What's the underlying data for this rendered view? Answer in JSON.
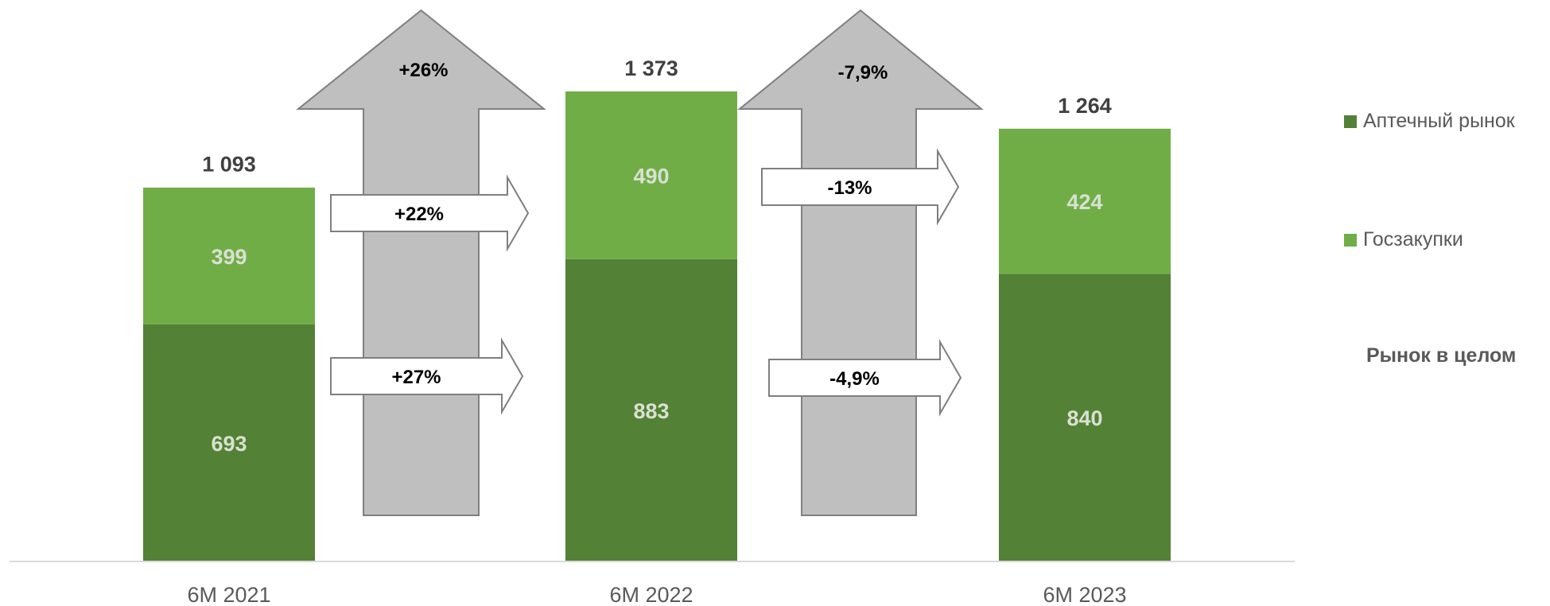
{
  "chart_data": {
    "type": "bar",
    "stacked": true,
    "categories": [
      "6M 2021",
      "6M 2022",
      "6M 2023"
    ],
    "series": [
      {
        "name": "Аптечный рынок",
        "values": [
          693,
          883,
          840
        ],
        "color": "#538135"
      },
      {
        "name": "Госзакупки",
        "values": [
          399,
          490,
          424
        ],
        "color": "#70AD47"
      }
    ],
    "totals": [
      "1 093",
      "1 373",
      "1 264"
    ],
    "total_values": [
      1093,
      1373,
      1264
    ],
    "total_series_name": "Рынок в целом",
    "growth": {
      "total": [
        "+26%",
        "-7,9%"
      ],
      "Госзакупки": [
        "+22%",
        "-13%"
      ],
      "Аптечный рынок": [
        "+27%",
        "-4,9%"
      ]
    },
    "ylim": [
      0,
      1500
    ],
    "grid": false,
    "legend_position": "right",
    "title": "",
    "xlabel": "",
    "ylabel": ""
  },
  "colors": {
    "pharmacy": "#538135",
    "procurement": "#70AD47",
    "big_arrow_fill": "#BFBFBF",
    "big_arrow_stroke": "#7F7F7F",
    "small_arrow_fill": "#FFFFFF",
    "inner_label": "#D9E1D2",
    "total_label": "#404040",
    "axis_label": "#595959"
  }
}
